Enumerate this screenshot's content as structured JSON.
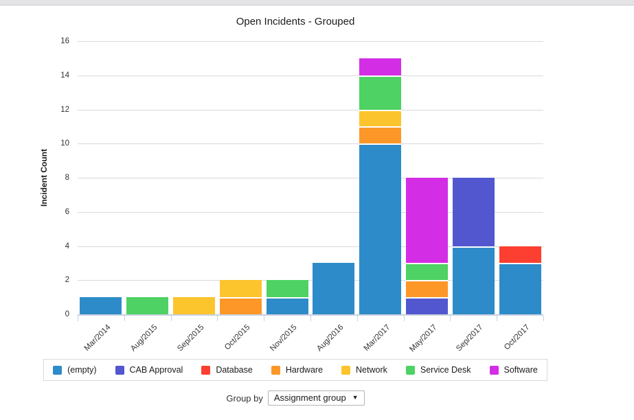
{
  "controls": {
    "group_by_label": "Group by",
    "group_by_value": "Assignment group",
    "dropdown_arrow": "▼"
  },
  "chart_data": {
    "type": "bar",
    "stacked": true,
    "title": "Open Incidents - Grouped",
    "xlabel": "",
    "ylabel": "Incident Count",
    "ylim": [
      0,
      16
    ],
    "yticks": [
      0,
      2,
      4,
      6,
      8,
      10,
      12,
      14,
      16
    ],
    "grid": true,
    "legend_position": "bottom",
    "grid_color": "#d9d9d9",
    "axis_color": "#c8d1e0",
    "categories": [
      "Mar/2014",
      "Aug/2015",
      "Sep/2015",
      "Oct/2015",
      "Nov/2015",
      "Aug/2016",
      "Mar/2017",
      "May/2017",
      "Sep/2017",
      "Oct/2017"
    ],
    "series": [
      {
        "name": "(empty)",
        "color": "#2E8BC9",
        "values": [
          1,
          0,
          0,
          0,
          1,
          3,
          10,
          0,
          4,
          3
        ]
      },
      {
        "name": "CAB Approval",
        "color": "#5257CF",
        "values": [
          0,
          0,
          0,
          0,
          0,
          0,
          0,
          1,
          4,
          0
        ]
      },
      {
        "name": "Database",
        "color": "#FC3F30",
        "values": [
          0,
          0,
          0,
          0,
          0,
          0,
          0,
          0,
          0,
          1
        ]
      },
      {
        "name": "Hardware",
        "color": "#FC9728",
        "values": [
          0,
          0,
          0,
          1,
          0,
          0,
          1,
          1,
          0,
          0
        ]
      },
      {
        "name": "Network",
        "color": "#FCC42D",
        "values": [
          0,
          0,
          1,
          1,
          0,
          0,
          1,
          0,
          0,
          0
        ]
      },
      {
        "name": "Service Desk",
        "color": "#4DD263",
        "values": [
          0,
          1,
          0,
          0,
          1,
          0,
          2,
          1,
          0,
          0
        ]
      },
      {
        "name": "Software",
        "color": "#D32EE6",
        "values": [
          0,
          0,
          0,
          0,
          0,
          0,
          1,
          5,
          0,
          0
        ]
      }
    ]
  }
}
